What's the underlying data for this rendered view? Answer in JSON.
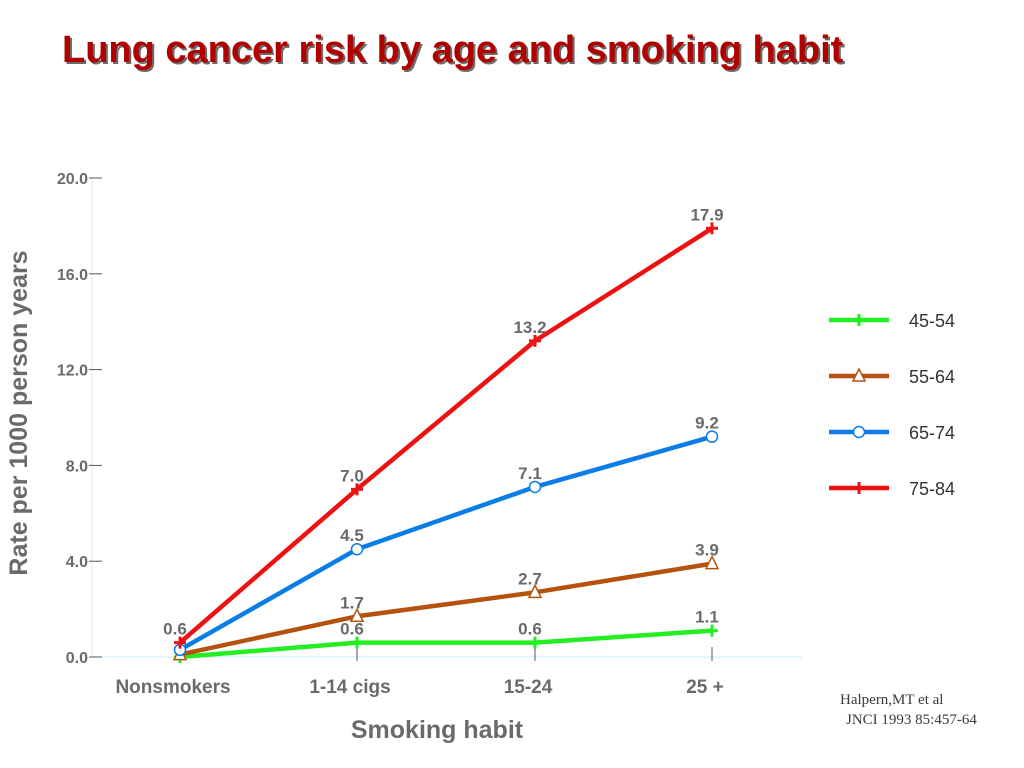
{
  "title": "Lung cancer risk by age and smoking habit",
  "citation": {
    "line1": "Halpern,MT et al",
    "line2": "JNCI 1993 85:457-64"
  },
  "chart_data": {
    "type": "line",
    "xlabel": "Smoking habit",
    "ylabel": "Rate per 1000 person years",
    "categories": [
      "Nonsmokers",
      "1-14 cigs",
      "15-24",
      "25 +"
    ],
    "ylim": [
      0,
      20
    ],
    "yticks": [
      "0.0",
      "4.0",
      "8.0",
      "12.0",
      "16.0",
      "20.0"
    ],
    "legend_position": "right",
    "series": [
      {
        "name": "45-54",
        "color": "#22ee22",
        "marker": "plus",
        "values": [
          0.0,
          0.6,
          0.6,
          1.1
        ],
        "labels": [
          "",
          "0.6",
          "0.6",
          "1.1"
        ]
      },
      {
        "name": "55-64",
        "color": "#b5530e",
        "marker": "triangle",
        "values": [
          0.1,
          1.7,
          2.7,
          3.9
        ],
        "labels": [
          "",
          "1.7",
          "2.7",
          "3.9"
        ]
      },
      {
        "name": "65-74",
        "color": "#0a7ee6",
        "marker": "circle",
        "values": [
          0.3,
          4.5,
          7.1,
          9.2
        ],
        "labels": [
          "",
          "4.5",
          "7.1",
          "9.2"
        ]
      },
      {
        "name": "75-84",
        "color": "#ee1111",
        "marker": "plus",
        "values": [
          0.6,
          7.0,
          13.2,
          17.9
        ],
        "labels": [
          "0.6",
          "7.0",
          "13.2",
          "17.9"
        ]
      }
    ]
  }
}
